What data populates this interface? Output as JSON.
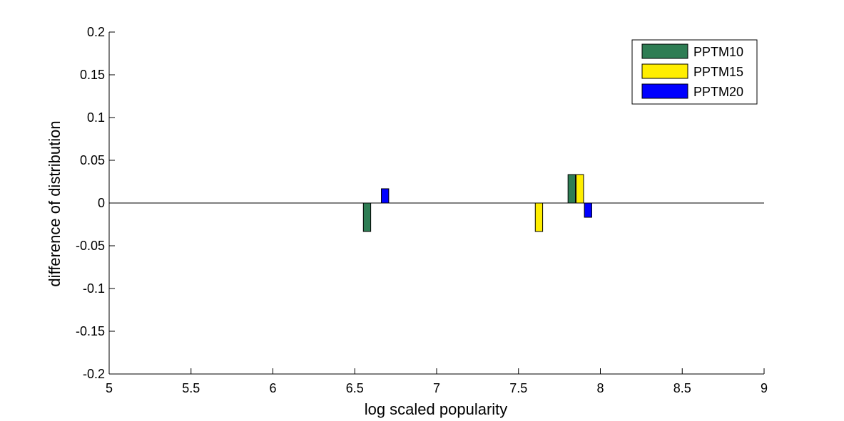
{
  "chart_data": {
    "type": "bar",
    "title": "",
    "xlabel": "log scaled popularity",
    "ylabel": "difference of distribution",
    "xlim": [
      5,
      9
    ],
    "ylim": [
      -0.2,
      0.2
    ],
    "xticks": [
      5,
      5.5,
      6,
      6.5,
      7,
      7.5,
      8,
      8.5,
      9
    ],
    "xtick_labels": [
      "5",
      "5.5",
      "6",
      "6.5",
      "7",
      "7.5",
      "8",
      "8.5",
      "9"
    ],
    "yticks": [
      0.2,
      0.15,
      0.1,
      0.05,
      0,
      -0.05,
      -0.1,
      -0.15,
      -0.2
    ],
    "ytick_labels": [
      "0.2",
      "0.15",
      "0.1",
      "0.05",
      "0",
      "-0.05",
      "-0.1",
      "-0.15",
      "-0.2"
    ],
    "grid": false,
    "legend_position": "top-right",
    "bar_width": 0.045,
    "series": [
      {
        "name": "PPTM10",
        "color": "#2e7d54",
        "points": [
          {
            "x": 6.575,
            "y": -0.0333
          },
          {
            "x": 7.825,
            "y": 0.0333
          }
        ]
      },
      {
        "name": "PPTM15",
        "color": "#ffee00",
        "points": [
          {
            "x": 7.625,
            "y": -0.0333
          },
          {
            "x": 7.875,
            "y": 0.0333
          }
        ]
      },
      {
        "name": "PPTM20",
        "color": "#0000ff",
        "points": [
          {
            "x": 6.685,
            "y": 0.0167
          },
          {
            "x": 7.925,
            "y": -0.0167
          }
        ]
      }
    ]
  }
}
